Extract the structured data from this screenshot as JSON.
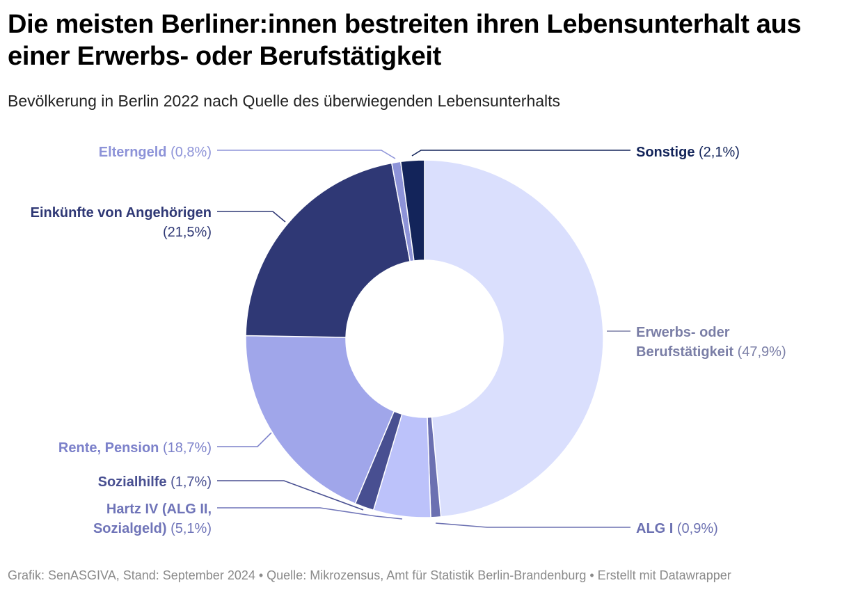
{
  "header": {
    "title": "Die meisten Berliner:innen bestreiten ihren Lebensunterhalt aus einer Erwerbs- oder Berufstätigkeit",
    "subtitle": "Bevölkerung in Berlin 2022 nach Quelle des überwiegenden Lebensunterhalts"
  },
  "footer": {
    "text": "Grafik: SenASGIVA, Stand: September 2024 • Quelle: Mikrozensus, Amt für Statistik Berlin-Brandenburg • Erstellt mit Datawrapper"
  },
  "chart_data": {
    "type": "pie",
    "variant": "donut",
    "title": "Die meisten Berliner:innen bestreiten ihren Lebensunterhalt aus einer Erwerbs- oder Berufstätigkeit",
    "unit": "%",
    "slices": [
      {
        "name": "Erwerbs- oder Berufstätigkeit",
        "lines": [
          "Erwerbs- oder",
          "Berufstätigkeit"
        ],
        "value": 47.9,
        "label": "(47,9%)",
        "color": "#dadffd",
        "text_color": "#7a7ea6"
      },
      {
        "name": "ALG I",
        "lines": [
          "ALG I"
        ],
        "value": 0.9,
        "label": "(0,9%)",
        "color": "#6b70b1",
        "text_color": "#6b70b1"
      },
      {
        "name": "Hartz IV (ALG II, Sozialgeld)",
        "lines": [
          "Hartz IV (ALG II,",
          "Sozialgeld)"
        ],
        "value": 5.1,
        "label": "(5,1%)",
        "color": "#bcc2fa",
        "text_color": "#6f74b8"
      },
      {
        "name": "Sozialhilfe",
        "lines": [
          "Sozialhilfe"
        ],
        "value": 1.7,
        "label": "(1,7%)",
        "color": "#484f91",
        "text_color": "#484f91"
      },
      {
        "name": "Rente, Pension",
        "lines": [
          "Rente, Pension"
        ],
        "value": 18.7,
        "label": "(18,7%)",
        "color": "#a0a6ea",
        "text_color": "#7c81ca"
      },
      {
        "name": "Einkünfte von Angehörigen",
        "lines": [
          "Einkünfte von Angehörigen"
        ],
        "value": 21.5,
        "label": "(21,5%)",
        "color": "#2f3875",
        "text_color": "#2f3875"
      },
      {
        "name": "Elterngeld",
        "lines": [
          "Elterngeld"
        ],
        "value": 0.8,
        "label": "(0,8%)",
        "color": "#8d93d8",
        "text_color": "#8d93d8"
      },
      {
        "name": "Sonstige",
        "lines": [
          "Sonstige"
        ],
        "value": 2.1,
        "label": "(2,1%)",
        "color": "#13245a",
        "text_color": "#13245a"
      }
    ]
  }
}
